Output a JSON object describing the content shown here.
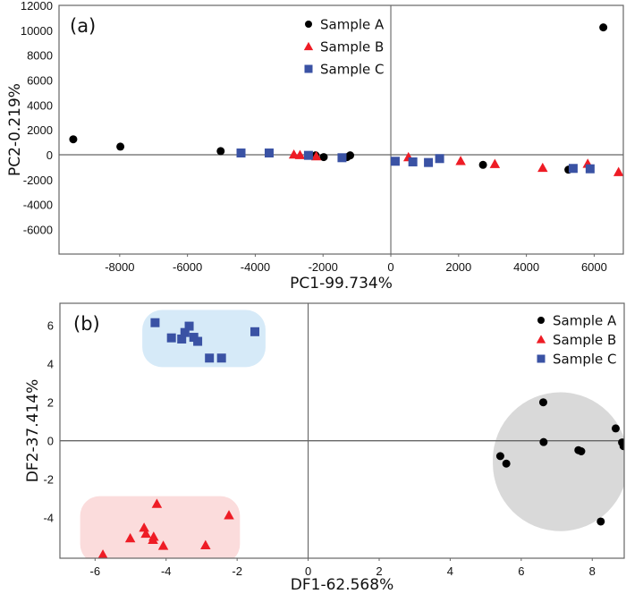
{
  "chart_data": [
    {
      "type": "scatter",
      "panel_label": "(a)",
      "xlabel": "PC1-99.734%",
      "ylabel": "PC2-0.219%",
      "xlim": [
        -9790,
        6860
      ],
      "ylim": [
        -7980,
        12000
      ],
      "xticks": [
        -8000,
        -6000,
        -4000,
        -2000,
        0,
        2000,
        4000,
        6000
      ],
      "yticks": [
        12000,
        10000,
        8000,
        6000,
        4000,
        2000,
        0,
        -2000,
        -4000,
        -6000
      ],
      "zero_lines": true,
      "legend_position": "top-center",
      "series": [
        {
          "name": "Sample A",
          "marker": "circle",
          "color": "#000000",
          "points": [
            [
              -9370,
              1240
            ],
            [
              -7980,
              650
            ],
            [
              -5020,
              290
            ],
            [
              -2220,
              -50
            ],
            [
              -1980,
              -190
            ],
            [
              -1290,
              -190
            ],
            [
              -1200,
              -50
            ],
            [
              2720,
              -815
            ],
            [
              5240,
              -1200
            ],
            [
              6270,
              10230
            ]
          ]
        },
        {
          "name": "Sample B",
          "marker": "triangle",
          "color": "#ee1c25",
          "points": [
            [
              -2860,
              20
            ],
            [
              -2680,
              -20
            ],
            [
              -2200,
              -120
            ],
            [
              520,
              -190
            ],
            [
              2060,
              -500
            ],
            [
              3070,
              -740
            ],
            [
              4480,
              -1050
            ],
            [
              5810,
              -720
            ],
            [
              6720,
              -1390
            ]
          ]
        },
        {
          "name": "Sample C",
          "marker": "square",
          "color": "#3a52a4",
          "points": [
            [
              -4420,
              140
            ],
            [
              -3590,
              140
            ],
            [
              -2430,
              -50
            ],
            [
              -1440,
              -240
            ],
            [
              130,
              -525
            ],
            [
              650,
              -575
            ],
            [
              1110,
              -625
            ],
            [
              1440,
              -310
            ],
            [
              5380,
              -1100
            ],
            [
              5880,
              -1130
            ]
          ]
        }
      ]
    },
    {
      "type": "scatter",
      "panel_label": "(b)",
      "xlabel": "DF1-62.568%",
      "ylabel": "DF2-37.414%",
      "xlim": [
        -6.99,
        8.9
      ],
      "ylim": [
        -6.11,
        7.15
      ],
      "xticks": [
        -6,
        -4,
        -2,
        0,
        2,
        4,
        6,
        8
      ],
      "yticks": [
        -4,
        -2,
        0,
        2,
        4,
        6
      ],
      "zero_lines": true,
      "legend_position": "top-right",
      "regions": [
        {
          "series": "Sample C",
          "color": "#d6eaf8",
          "x": [
            -4.67,
            -1.2
          ],
          "y": [
            3.83,
            6.8
          ]
        },
        {
          "series": "Sample B",
          "color": "#fbdcdc",
          "x": [
            -6.42,
            -1.92
          ],
          "y": [
            -6.4,
            -2.88
          ]
        },
        {
          "series": "Sample A",
          "color": "#d9d9d9",
          "x": [
            5.2,
            9.0
          ],
          "y": [
            -4.7,
            2.52
          ]
        }
      ],
      "series": [
        {
          "name": "Sample A",
          "marker": "circle",
          "color": "#000000",
          "points": [
            [
              6.62,
              2.0
            ],
            [
              6.63,
              -0.07
            ],
            [
              5.41,
              -0.8
            ],
            [
              5.58,
              -1.19
            ],
            [
              7.61,
              -0.49
            ],
            [
              7.69,
              -0.55
            ],
            [
              8.66,
              0.64
            ],
            [
              8.84,
              -0.09
            ],
            [
              8.88,
              -0.28
            ],
            [
              8.24,
              -4.2
            ]
          ]
        },
        {
          "name": "Sample B",
          "marker": "triangle",
          "color": "#ee1c25",
          "points": [
            [
              -4.26,
              -3.28
            ],
            [
              -2.23,
              -3.87
            ],
            [
              -4.62,
              -4.52
            ],
            [
              -4.57,
              -4.83
            ],
            [
              -5.01,
              -5.07
            ],
            [
              -4.35,
              -4.99
            ],
            [
              -4.37,
              -5.15
            ],
            [
              -4.08,
              -5.46
            ],
            [
              -2.89,
              -5.43
            ],
            [
              -5.78,
              -5.92
            ]
          ]
        },
        {
          "name": "Sample C",
          "marker": "square",
          "color": "#3a52a4",
          "points": [
            [
              -4.31,
              6.14
            ],
            [
              -3.85,
              5.35
            ],
            [
              -3.56,
              5.29
            ],
            [
              -3.47,
              5.63
            ],
            [
              -3.35,
              5.96
            ],
            [
              -3.22,
              5.38
            ],
            [
              -3.11,
              5.17
            ],
            [
              -2.78,
              4.3
            ],
            [
              -2.44,
              4.3
            ],
            [
              -1.5,
              5.67
            ]
          ]
        }
      ]
    }
  ]
}
